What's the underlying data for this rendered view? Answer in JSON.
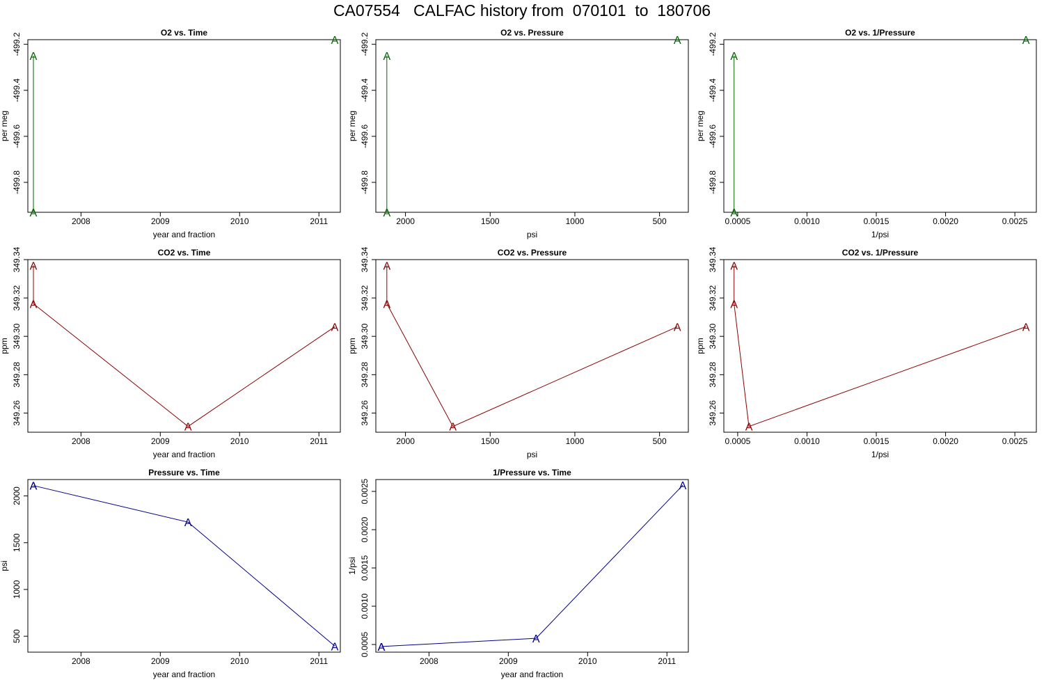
{
  "page": {
    "title": "CA07554   CALFAC history from  070101  to  180706"
  },
  "colors": {
    "o2": "#006400",
    "co2": "#8b0000",
    "pressure": "#00008b",
    "axis": "#000000"
  },
  "point_symbol": "A",
  "chart_data": [
    {
      "type": "line",
      "title": "O2 vs. Time",
      "xlabel": "year and fraction",
      "ylabel": "per meg",
      "x": [
        2007.4,
        2007.4,
        2011.2
      ],
      "y": [
        -499.93,
        -499.25,
        -499.18
      ],
      "xlim": [
        2007.33,
        2011.27
      ],
      "ylim": [
        -499.93,
        -499.18
      ],
      "xticks": [
        2008,
        2009,
        2010,
        2011
      ],
      "xtick_labels": [
        "2008",
        "2009",
        "2010",
        "2011"
      ],
      "yticks": [
        -499.8,
        -499.6,
        -499.4,
        -499.2
      ],
      "ytick_labels": [
        "-499.8",
        "-499.6",
        "-499.4",
        "-499.2"
      ],
      "color": "#006400",
      "connect": [
        0,
        1
      ]
    },
    {
      "type": "line",
      "title": "O2 vs. Pressure",
      "xlabel": "psi",
      "ylabel": "per meg",
      "x": [
        2110,
        2110,
        395
      ],
      "y": [
        -499.93,
        -499.25,
        -499.18
      ],
      "xlim": [
        2175,
        330
      ],
      "ylim": [
        -499.93,
        -499.18
      ],
      "xticks": [
        2000,
        1500,
        1000,
        500
      ],
      "xtick_labels": [
        "2000",
        "1500",
        "1000",
        "500"
      ],
      "yticks": [
        -499.8,
        -499.6,
        -499.4,
        -499.2
      ],
      "ytick_labels": [
        "-499.8",
        "-499.6",
        "-499.4",
        "-499.2"
      ],
      "color": "#006400",
      "connect": [
        0,
        1
      ]
    },
    {
      "type": "line",
      "title": "O2 vs. 1/Pressure",
      "xlabel": "1/psi",
      "ylabel": "per meg",
      "x": [
        0.000474,
        0.000474,
        0.00258
      ],
      "y": [
        -499.93,
        -499.25,
        -499.18
      ],
      "xlim": [
        0.0004,
        0.002655
      ],
      "ylim": [
        -499.93,
        -499.18
      ],
      "xticks": [
        0.0005,
        0.001,
        0.0015,
        0.002,
        0.0025
      ],
      "xtick_labels": [
        "0.0005",
        "0.0010",
        "0.0015",
        "0.0020",
        "0.0025"
      ],
      "yticks": [
        -499.8,
        -499.6,
        -499.4,
        -499.2
      ],
      "ytick_labels": [
        "-499.8",
        "-499.6",
        "-499.4",
        "-499.2"
      ],
      "color": "#006400",
      "connect": [
        0,
        1
      ]
    },
    {
      "type": "line",
      "title": "CO2 vs. Time",
      "xlabel": "year and fraction",
      "ylabel": "ppm",
      "x": [
        2007.4,
        2007.4,
        2009.35,
        2011.2
      ],
      "y": [
        349.337,
        349.317,
        349.253,
        349.305
      ],
      "xlim": [
        2007.33,
        2011.27
      ],
      "ylim": [
        349.25,
        349.34
      ],
      "xticks": [
        2008,
        2009,
        2010,
        2011
      ],
      "xtick_labels": [
        "2008",
        "2009",
        "2010",
        "2011"
      ],
      "yticks": [
        349.26,
        349.28,
        349.3,
        349.32,
        349.34
      ],
      "ytick_labels": [
        "349.26",
        "349.28",
        "349.30",
        "349.32",
        "349.34"
      ],
      "color": "#8b0000",
      "connect": [
        0,
        1,
        2,
        3
      ]
    },
    {
      "type": "line",
      "title": "CO2 vs. Pressure",
      "xlabel": "psi",
      "ylabel": "ppm",
      "x": [
        2110,
        2110,
        1720,
        395
      ],
      "y": [
        349.337,
        349.317,
        349.253,
        349.305
      ],
      "xlim": [
        2175,
        330
      ],
      "ylim": [
        349.25,
        349.34
      ],
      "xticks": [
        2000,
        1500,
        1000,
        500
      ],
      "xtick_labels": [
        "2000",
        "1500",
        "1000",
        "500"
      ],
      "yticks": [
        349.26,
        349.28,
        349.3,
        349.32,
        349.34
      ],
      "ytick_labels": [
        "349.26",
        "349.28",
        "349.30",
        "349.32",
        "349.34"
      ],
      "color": "#8b0000",
      "connect": [
        0,
        1,
        2,
        3
      ]
    },
    {
      "type": "line",
      "title": "CO2 vs. 1/Pressure",
      "xlabel": "1/psi",
      "ylabel": "ppm",
      "x": [
        0.000474,
        0.000474,
        0.000581,
        0.00258
      ],
      "y": [
        349.337,
        349.317,
        349.253,
        349.305
      ],
      "xlim": [
        0.0004,
        0.002655
      ],
      "ylim": [
        349.25,
        349.34
      ],
      "xticks": [
        0.0005,
        0.001,
        0.0015,
        0.002,
        0.0025
      ],
      "xtick_labels": [
        "0.0005",
        "0.0010",
        "0.0015",
        "0.0020",
        "0.0025"
      ],
      "yticks": [
        349.26,
        349.28,
        349.3,
        349.32,
        349.34
      ],
      "ytick_labels": [
        "349.26",
        "349.28",
        "349.30",
        "349.32",
        "349.34"
      ],
      "color": "#8b0000",
      "connect": [
        0,
        1,
        2,
        3
      ]
    },
    {
      "type": "line",
      "title": "Pressure vs. Time",
      "xlabel": "year and fraction",
      "ylabel": "psi",
      "x": [
        2007.4,
        2007.4,
        2009.35,
        2011.2
      ],
      "y": [
        2110,
        2110,
        1720,
        395
      ],
      "xlim": [
        2007.33,
        2011.27
      ],
      "ylim": [
        330,
        2175
      ],
      "xticks": [
        2008,
        2009,
        2010,
        2011
      ],
      "xtick_labels": [
        "2008",
        "2009",
        "2010",
        "2011"
      ],
      "yticks": [
        500,
        1000,
        1500,
        2000
      ],
      "ytick_labels": [
        "500",
        "1000",
        "1500",
        "2000"
      ],
      "color": "#00008b",
      "connect": [
        0,
        1,
        2,
        3
      ]
    },
    {
      "type": "line",
      "title": "1/Pressure vs. Time",
      "xlabel": "year and fraction",
      "ylabel": "1/psi",
      "x": [
        2007.4,
        2007.4,
        2009.35,
        2011.2
      ],
      "y": [
        0.000474,
        0.000474,
        0.000581,
        0.00258
      ],
      "xlim": [
        2007.33,
        2011.27
      ],
      "ylim": [
        0.0004,
        0.002655
      ],
      "xticks": [
        2008,
        2009,
        2010,
        2011
      ],
      "xtick_labels": [
        "2008",
        "2009",
        "2010",
        "2011"
      ],
      "yticks": [
        0.0005,
        0.001,
        0.0015,
        0.002,
        0.0025
      ],
      "ytick_labels": [
        "0.0005",
        "0.0010",
        "0.0015",
        "0.0020",
        "0.0025"
      ],
      "color": "#00008b",
      "connect": [
        0,
        1,
        2,
        3
      ]
    }
  ]
}
